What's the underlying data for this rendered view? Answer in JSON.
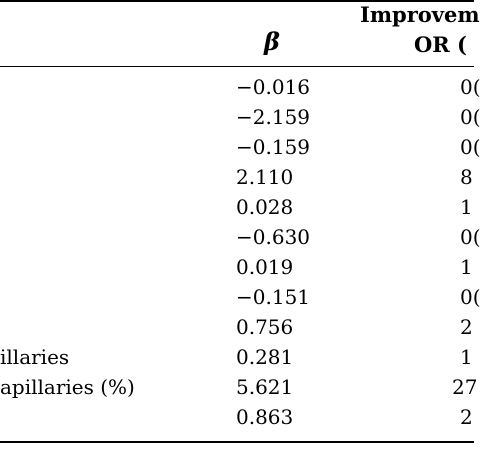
{
  "table": {
    "header": {
      "group": "Improvem",
      "or": "OR (",
      "beta": "β"
    },
    "rows": [
      {
        "label": "",
        "beta": "−0.016",
        "or": "0("
      },
      {
        "label": "",
        "beta": "−2.159",
        "or": "0("
      },
      {
        "label": "",
        "beta": "−0.159",
        "or": "0("
      },
      {
        "label": "",
        "beta": "2.110",
        "or": "8"
      },
      {
        "label": "",
        "beta": "0.028",
        "or": "1"
      },
      {
        "label": "",
        "beta": "−0.630",
        "or": "0("
      },
      {
        "label": "",
        "beta": "0.019",
        "or": "1"
      },
      {
        "label": "",
        "beta": "−0.151",
        "or": "0("
      },
      {
        "label": "",
        "beta": "0.756",
        "or": "2"
      },
      {
        "label": "illaries",
        "beta": "0.281",
        "or": "1"
      },
      {
        "label": "apillaries (%)",
        "beta": "5.621",
        "or": "27"
      },
      {
        "label": "",
        "beta": "0.863",
        "or": "2"
      }
    ]
  }
}
